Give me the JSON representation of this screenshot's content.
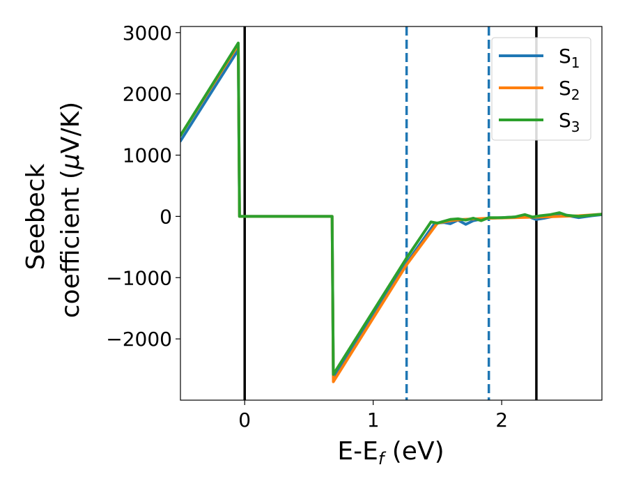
{
  "chart_data": {
    "type": "line",
    "xlabel": "E-E",
    "xlabel_sub": "f",
    "xlabel_unit": " (eV)",
    "ylabel_line1": "Seebeck",
    "ylabel_line2_prefix": "coefficient  (",
    "ylabel_mu": "μ",
    "ylabel_line2_suffix": "V/K)",
    "xlim": [
      -0.5,
      2.78
    ],
    "ylim": [
      -3000,
      3100
    ],
    "xticks": [
      0,
      1,
      2
    ],
    "xtick_labels": [
      "0",
      "1",
      "2"
    ],
    "yticks": [
      3000,
      2000,
      1000,
      0,
      -1000,
      -2000
    ],
    "ytick_labels": [
      "3000",
      "2000",
      "1000",
      "0",
      "−1000",
      "−2000"
    ],
    "grid": false,
    "legend_position": "top-right",
    "vlines": [
      {
        "x": 0.0,
        "style": "solid",
        "color": "#000000"
      },
      {
        "x": 1.26,
        "style": "dashed",
        "color": "#1f77b4"
      },
      {
        "x": 1.9,
        "style": "dashed",
        "color": "#1f77b4"
      },
      {
        "x": 2.27,
        "style": "solid",
        "color": "#000000"
      }
    ],
    "series": [
      {
        "name": "S",
        "sub": "1",
        "color": "#1f77b4",
        "x": [
          -0.5,
          -0.05,
          -0.04,
          0.68,
          0.69,
          1.26,
          1.48,
          1.55,
          1.6,
          1.66,
          1.72,
          1.78,
          1.85,
          1.9,
          2.0,
          2.1,
          2.2,
          2.27,
          2.33,
          2.4,
          2.46,
          2.52,
          2.6,
          2.7,
          2.78
        ],
        "y": [
          1230,
          2720,
          0,
          0,
          -2660,
          -760,
          -110,
          -100,
          -120,
          -60,
          -130,
          -70,
          -40,
          -30,
          -20,
          -10,
          0,
          -50,
          -30,
          0,
          50,
          10,
          -20,
          10,
          30
        ]
      },
      {
        "name": "S",
        "sub": "2",
        "color": "#ff7f0e",
        "x": [
          -0.5,
          -0.05,
          -0.04,
          0.68,
          0.69,
          1.26,
          1.5,
          1.6,
          1.7,
          1.8,
          1.9,
          2.0,
          2.2,
          2.4,
          2.6,
          2.78
        ],
        "y": [
          1320,
          2800,
          0,
          0,
          -2700,
          -790,
          -110,
          -70,
          -50,
          -40,
          -30,
          -25,
          -15,
          -5,
          10,
          35
        ]
      },
      {
        "name": "S",
        "sub": "3",
        "color": "#2ca02c",
        "x": [
          -0.5,
          -0.05,
          -0.04,
          0.68,
          0.69,
          1.26,
          1.45,
          1.5,
          1.55,
          1.6,
          1.66,
          1.72,
          1.78,
          1.84,
          1.9,
          2.0,
          2.1,
          2.18,
          2.24,
          2.3,
          2.38,
          2.45,
          2.5,
          2.6,
          2.7,
          2.78
        ],
        "y": [
          1320,
          2830,
          0,
          0,
          -2580,
          -680,
          -90,
          -110,
          -80,
          -50,
          -40,
          -60,
          -30,
          -70,
          -20,
          -20,
          -10,
          30,
          -10,
          10,
          30,
          60,
          20,
          0,
          20,
          35
        ]
      }
    ]
  }
}
